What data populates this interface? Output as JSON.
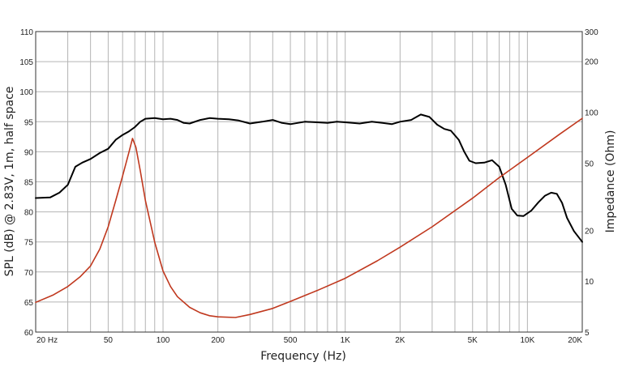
{
  "chart_data": {
    "type": "line",
    "title": "",
    "xlabel": "Frequency (Hz)",
    "ylabel_left": "SPL (dB) @ 2.83V, 1m, half space",
    "ylabel_right": "Impedance (Ohm)",
    "x_scale": "log",
    "xlim": [
      20,
      20000
    ],
    "ylim_left": [
      60,
      110
    ],
    "ylim_right": [
      5,
      300
    ],
    "y_right_scale": "log",
    "grid": true,
    "legend": "none",
    "x_ticks": [
      {
        "value": 20,
        "label": "20  Hz"
      },
      {
        "value": 50,
        "label": "50"
      },
      {
        "value": 100,
        "label": "100"
      },
      {
        "value": 200,
        "label": "200"
      },
      {
        "value": 500,
        "label": "500"
      },
      {
        "value": 1000,
        "label": "1K"
      },
      {
        "value": 2000,
        "label": "2K"
      },
      {
        "value": 5000,
        "label": "5K"
      },
      {
        "value": 10000,
        "label": "10K"
      },
      {
        "value": 20000,
        "label": "20K"
      }
    ],
    "y_left_ticks": [
      {
        "value": 60,
        "label": "60"
      },
      {
        "value": 65,
        "label": "65"
      },
      {
        "value": 70,
        "label": "70"
      },
      {
        "value": 75,
        "label": "75"
      },
      {
        "value": 80,
        "label": "80"
      },
      {
        "value": 85,
        "label": "85"
      },
      {
        "value": 90,
        "label": "90"
      },
      {
        "value": 95,
        "label": "95"
      },
      {
        "value": 100,
        "label": "100"
      },
      {
        "value": 105,
        "label": "105"
      },
      {
        "value": 110,
        "label": "110"
      }
    ],
    "y_right_ticks": [
      {
        "value": 5,
        "label": "5"
      },
      {
        "value": 10,
        "label": "10"
      },
      {
        "value": 20,
        "label": "20"
      },
      {
        "value": 50,
        "label": "50"
      },
      {
        "value": 100,
        "label": "100"
      },
      {
        "value": 200,
        "label": "200"
      },
      {
        "value": 300,
        "label": "300"
      }
    ],
    "series": [
      {
        "color": "#000000",
        "axis": "left",
        "points": [
          [
            20,
            82.3
          ],
          [
            24,
            82.4
          ],
          [
            27,
            83.2
          ],
          [
            30,
            84.5
          ],
          [
            33,
            87.5
          ],
          [
            36,
            88.2
          ],
          [
            40,
            88.8
          ],
          [
            45,
            89.8
          ],
          [
            50,
            90.5
          ],
          [
            55,
            92
          ],
          [
            60,
            92.8
          ],
          [
            65,
            93.4
          ],
          [
            70,
            94.1
          ],
          [
            75,
            95
          ],
          [
            80,
            95.5
          ],
          [
            90,
            95.6
          ],
          [
            100,
            95.4
          ],
          [
            110,
            95.5
          ],
          [
            120,
            95.3
          ],
          [
            130,
            94.8
          ],
          [
            140,
            94.7
          ],
          [
            160,
            95.3
          ],
          [
            180,
            95.6
          ],
          [
            200,
            95.5
          ],
          [
            230,
            95.4
          ],
          [
            260,
            95.2
          ],
          [
            300,
            94.7
          ],
          [
            350,
            95
          ],
          [
            400,
            95.3
          ],
          [
            450,
            94.8
          ],
          [
            500,
            94.6
          ],
          [
            600,
            95
          ],
          [
            700,
            94.9
          ],
          [
            800,
            94.8
          ],
          [
            900,
            95
          ],
          [
            1000,
            94.9
          ],
          [
            1200,
            94.7
          ],
          [
            1400,
            95
          ],
          [
            1600,
            94.8
          ],
          [
            1800,
            94.6
          ],
          [
            2000,
            95
          ],
          [
            2300,
            95.3
          ],
          [
            2600,
            96.2
          ],
          [
            2900,
            95.8
          ],
          [
            3200,
            94.5
          ],
          [
            3500,
            93.8
          ],
          [
            3800,
            93.5
          ],
          [
            4200,
            92
          ],
          [
            4500,
            90
          ],
          [
            4800,
            88.5
          ],
          [
            5200,
            88.1
          ],
          [
            5800,
            88.2
          ],
          [
            6400,
            88.6
          ],
          [
            7000,
            87.5
          ],
          [
            7600,
            84.5
          ],
          [
            8200,
            80.5
          ],
          [
            8800,
            79.4
          ],
          [
            9500,
            79.3
          ],
          [
            10500,
            80.2
          ],
          [
            11500,
            81.6
          ],
          [
            12500,
            82.7
          ],
          [
            13500,
            83.2
          ],
          [
            14500,
            83
          ],
          [
            15500,
            81.5
          ],
          [
            16500,
            79
          ],
          [
            18000,
            76.8
          ],
          [
            20000,
            75
          ]
        ]
      },
      {
        "color": "#c0381e",
        "axis": "right",
        "points": [
          [
            20,
            7.5
          ],
          [
            25,
            8.3
          ],
          [
            30,
            9.3
          ],
          [
            35,
            10.6
          ],
          [
            40,
            12.3
          ],
          [
            45,
            15.5
          ],
          [
            50,
            21
          ],
          [
            55,
            30
          ],
          [
            60,
            42
          ],
          [
            65,
            58
          ],
          [
            68,
            70
          ],
          [
            71,
            62
          ],
          [
            75,
            45
          ],
          [
            80,
            30
          ],
          [
            90,
            17
          ],
          [
            100,
            11.5
          ],
          [
            110,
            9.3
          ],
          [
            120,
            8.1
          ],
          [
            140,
            7
          ],
          [
            160,
            6.5
          ],
          [
            180,
            6.25
          ],
          [
            200,
            6.15
          ],
          [
            250,
            6.1
          ],
          [
            300,
            6.35
          ],
          [
            400,
            6.9
          ],
          [
            500,
            7.6
          ],
          [
            700,
            8.8
          ],
          [
            1000,
            10.4
          ],
          [
            1500,
            13.2
          ],
          [
            2000,
            15.9
          ],
          [
            3000,
            21
          ],
          [
            5000,
            31
          ],
          [
            7000,
            41
          ],
          [
            10000,
            54
          ],
          [
            15000,
            74
          ],
          [
            20000,
            92
          ]
        ]
      }
    ]
  }
}
